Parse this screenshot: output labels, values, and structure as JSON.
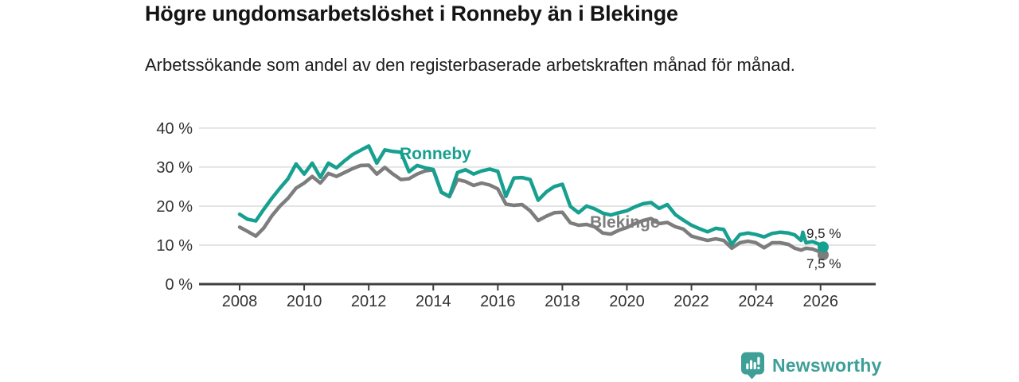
{
  "header": {
    "title": "Högre ungdomsarbetslöshet i Ronneby än i Blekinge",
    "subtitle": "Arbetssökande som andel av den registerbaserade arbetskraften månad för månad."
  },
  "chart_data": {
    "type": "line",
    "title": "Högre ungdomsarbetslöshet i Ronneby än i Blekinge",
    "subtitle": "Arbetssökande som andel av den registerbaserade arbetskraften månad för månad.",
    "xlabel": "",
    "ylabel": "",
    "xlim": [
      2007.6,
      2027
    ],
    "ylim": [
      0,
      40
    ],
    "grid": "horizontal",
    "legend": "inline-labels",
    "x": [
      2008,
      2008.25,
      2008.5,
      2008.75,
      2009,
      2009.25,
      2009.5,
      2009.75,
      2010,
      2010.25,
      2010.5,
      2010.75,
      2011,
      2011.25,
      2011.5,
      2011.75,
      2012,
      2012.25,
      2012.5,
      2012.75,
      2013,
      2013.25,
      2013.5,
      2013.75,
      2014,
      2014.25,
      2014.5,
      2014.75,
      2015,
      2015.25,
      2015.5,
      2015.75,
      2016,
      2016.25,
      2016.5,
      2016.75,
      2017,
      2017.25,
      2017.5,
      2017.75,
      2018,
      2018.25,
      2018.5,
      2018.75,
      2019,
      2019.25,
      2019.5,
      2019.75,
      2020,
      2020.25,
      2020.5,
      2020.75,
      2021,
      2021.25,
      2021.5,
      2021.75,
      2022,
      2022.25,
      2022.5,
      2022.75,
      2023,
      2023.25,
      2023.5,
      2023.75,
      2024,
      2024.25,
      2024.5,
      2024.75,
      2025,
      2025.2,
      2025.4,
      2025.45,
      2025.55,
      2025.75,
      2026,
      2026.08
    ],
    "series": [
      {
        "name": "Ronneby",
        "color": "#17a08f",
        "end_label": "9,5 %",
        "end_value": 9.5,
        "values": [
          17.9,
          16.6,
          16.2,
          19.2,
          22.0,
          24.6,
          27.0,
          30.8,
          28.2,
          31.0,
          27.4,
          31.0,
          29.8,
          31.6,
          33.2,
          34.3,
          35.4,
          31.0,
          34.4,
          34.0,
          33.8,
          28.8,
          30.4,
          29.8,
          29.4,
          23.6,
          22.5,
          28.6,
          29.3,
          28.2,
          29.0,
          29.5,
          28.9,
          22.5,
          27.2,
          27.3,
          26.8,
          21.5,
          23.6,
          25.0,
          25.6,
          19.9,
          18.3,
          20.0,
          19.3,
          18.2,
          17.7,
          18.3,
          18.8,
          19.8,
          20.6,
          20.9,
          19.4,
          20.4,
          17.8,
          16.4,
          15.1,
          14.2,
          13.4,
          14.3,
          14.0,
          10.2,
          12.7,
          13.1,
          12.7,
          12.1,
          13.0,
          13.3,
          13.1,
          12.6,
          11.2,
          13.3,
          10.6,
          10.9,
          10.1,
          9.5
        ]
      },
      {
        "name": "Blekinge",
        "color": "#7d7d7d",
        "end_label": "7,5 %",
        "end_value": 7.5,
        "values": [
          14.6,
          13.5,
          12.3,
          14.4,
          17.5,
          20.0,
          22.0,
          24.6,
          25.9,
          27.6,
          25.9,
          28.4,
          27.6,
          28.6,
          29.6,
          30.4,
          30.5,
          28.2,
          29.9,
          28.2,
          26.8,
          27.0,
          28.2,
          29.0,
          29.3,
          23.5,
          22.4,
          26.8,
          26.3,
          25.3,
          25.9,
          25.4,
          24.4,
          20.5,
          20.2,
          20.4,
          18.8,
          16.3,
          17.4,
          18.3,
          18.4,
          15.7,
          15.1,
          15.3,
          14.7,
          13.1,
          12.8,
          13.8,
          14.5,
          15.5,
          16.3,
          16.8,
          15.5,
          15.8,
          14.7,
          14.1,
          12.3,
          11.7,
          11.2,
          11.6,
          11.2,
          9.2,
          10.6,
          11.0,
          10.6,
          9.3,
          10.6,
          10.6,
          10.2,
          9.2,
          8.7,
          8.9,
          9.2,
          9.0,
          8.2,
          7.5
        ]
      }
    ],
    "y_ticks": [
      {
        "value": 0,
        "label": "0 %"
      },
      {
        "value": 10,
        "label": "10 %"
      },
      {
        "value": 20,
        "label": "20 %"
      },
      {
        "value": 30,
        "label": "30 %"
      },
      {
        "value": 40,
        "label": "40 %"
      }
    ],
    "x_ticks": [
      {
        "value": 2008,
        "label": "2008"
      },
      {
        "value": 2010,
        "label": "2010"
      },
      {
        "value": 2012,
        "label": "2012"
      },
      {
        "value": 2014,
        "label": "2014"
      },
      {
        "value": 2016,
        "label": "2016"
      },
      {
        "value": 2018,
        "label": "2018"
      },
      {
        "value": 2020,
        "label": "2020"
      },
      {
        "value": 2022,
        "label": "2022"
      },
      {
        "value": 2024,
        "label": "2024"
      },
      {
        "value": 2026,
        "label": "2026"
      }
    ]
  },
  "colors": {
    "ronneby": "#17a08f",
    "blekinge": "#7d7d7d",
    "axis": "#3f3f3f",
    "grid": "#e4e4e4",
    "tick_text": "#333333",
    "brand_teal": "#3d9f97"
  },
  "footer": {
    "brand": "Newsworthy"
  }
}
